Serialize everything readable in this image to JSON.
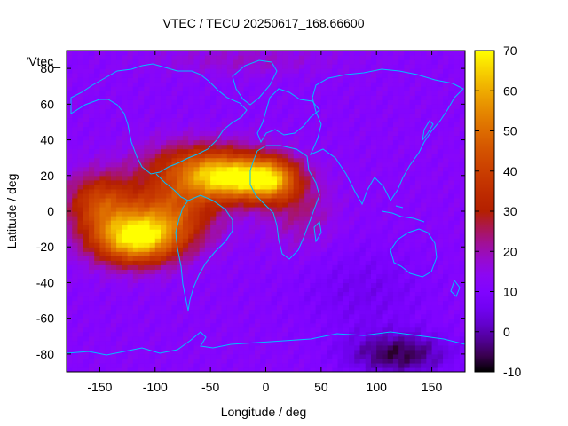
{
  "chart_data": {
    "type": "heatmap",
    "title": "VTEC / TECU 20250617_168.66600",
    "xlabel": "Longitude / deg",
    "ylabel": "Latitude / deg",
    "key_label": "'Vtec_",
    "xlim": [
      -180,
      180
    ],
    "ylim": [
      -90,
      90
    ],
    "xticks": [
      -150,
      -100,
      -50,
      0,
      50,
      100,
      150
    ],
    "yticks": [
      -80,
      -60,
      -40,
      -20,
      0,
      20,
      40,
      60,
      80
    ],
    "colorbar": {
      "min": -10,
      "max": 70,
      "ticks": [
        -10,
        0,
        10,
        20,
        30,
        40,
        50,
        60,
        70
      ],
      "palette": "gnuplot-pm3d"
    },
    "grid": {
      "lon_step": 5,
      "lat_step": 2.5
    },
    "background_tecu": 12,
    "features": [
      {
        "name": "equatorial-anomaly-south-pacific",
        "lon": -118,
        "lat": -15,
        "peak_tecu": 66
      },
      {
        "name": "equatorial-anomaly-north-atlantic",
        "lon": -30,
        "lat": 18,
        "peak_tecu": 56
      },
      {
        "name": "north-africa-crest",
        "lon": 5,
        "lat": 18,
        "peak_tecu": 50
      },
      {
        "name": "southern-depletion",
        "lon": 120,
        "lat": -80,
        "peak_tecu": -6
      }
    ],
    "coastline_color": "#00bfff"
  }
}
